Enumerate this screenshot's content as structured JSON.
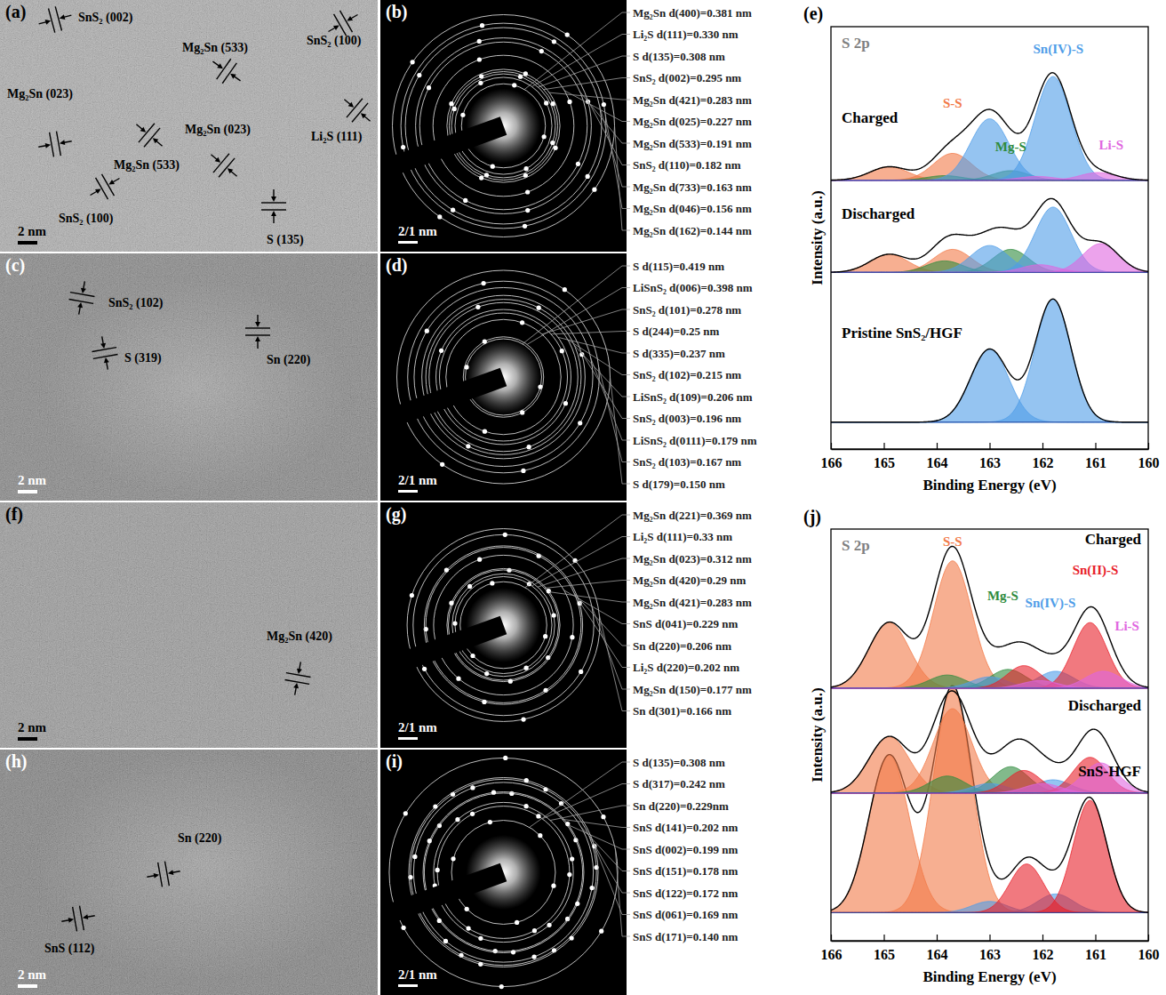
{
  "tem": [
    {
      "label": "(a)",
      "scale_bar": "2 nm",
      "annotations": [
        "SnS₂ (002)",
        "Mg₂Sn (533)",
        "SnS₂ (100)",
        "Li₂S (111)",
        "Mg₂Sn (023)",
        "Mg₂Sn (023)",
        "Mg₂Sn (533)",
        "SnS₂ (100)",
        "S (135)"
      ]
    },
    {
      "label": "(c)",
      "scale_bar": "2 nm",
      "annotations": [
        "SnS₂ (102)",
        "S (319)",
        "Sn (220)"
      ]
    },
    {
      "label": "(f)",
      "scale_bar": "2 nm",
      "annotations": [
        "Mg₂Sn (420)"
      ]
    },
    {
      "label": "(h)",
      "scale_bar": "2 nm",
      "annotations": [
        "Sn (220)",
        "SnS (112)"
      ]
    }
  ],
  "saed": [
    {
      "label": "(b)",
      "scale_bar": "2/1 nm",
      "rings": [
        {
          "label": "Mg₂Sn d(400)=0.381 nm",
          "d": 0.381
        },
        {
          "label": "Li₂S d(111)=0.330 nm",
          "d": 0.33
        },
        {
          "label": "S d(135)=0.308 nm",
          "d": 0.308
        },
        {
          "label": "SnS₂ d(002)=0.295 nm",
          "d": 0.295
        },
        {
          "label": "Mg₂Sn d(421)=0.283 nm",
          "d": 0.283
        },
        {
          "label": "Mg₂Sn d(025)=0.227 nm",
          "d": 0.227
        },
        {
          "label": "Mg₂Sn d(533)=0.191 nm",
          "d": 0.191
        },
        {
          "label": "SnS₂ d(110)=0.182 nm",
          "d": 0.182
        },
        {
          "label": "Mg₂Sn d(733)=0.163 nm",
          "d": 0.163
        },
        {
          "label": "Mg₂Sn d(046)=0.156 nm",
          "d": 0.156
        },
        {
          "label": "Mg₂Sn d(162)=0.144 nm",
          "d": 0.144
        }
      ]
    },
    {
      "label": "(d)",
      "scale_bar": "2/1 nm",
      "rings": [
        {
          "label": "S d(115)=0.419 nm",
          "d": 0.419
        },
        {
          "label": "LiSnS₂ d(006)=0.398 nm",
          "d": 0.398
        },
        {
          "label": "SnS₂ d(101)=0.278 nm",
          "d": 0.278
        },
        {
          "label": "S d(244)=0.25 nm",
          "d": 0.25
        },
        {
          "label": "S d(335)=0.237 nm",
          "d": 0.237
        },
        {
          "label": "SnS₂ d(102)=0.215 nm",
          "d": 0.215
        },
        {
          "label": "LiSnS₂ d(109)=0.206 nm",
          "d": 0.206
        },
        {
          "label": "SnS₂ d(003)=0.196 nm",
          "d": 0.196
        },
        {
          "label": "LiSnS₂ d(0111)=0.179 nm",
          "d": 0.179
        },
        {
          "label": "SnS₂ d(103)=0.167 nm",
          "d": 0.167
        },
        {
          "label": "S d(179)=0.150 nm",
          "d": 0.15
        }
      ]
    },
    {
      "label": "(g)",
      "scale_bar": "2/1 nm",
      "rings": [
        {
          "label": "Mg₂Sn d(221)=0.369 nm",
          "d": 0.369
        },
        {
          "label": "Li₂S d(111)=0.33 nm",
          "d": 0.33
        },
        {
          "label": "Mg₂Sn d(023)=0.312 nm",
          "d": 0.312
        },
        {
          "label": "Mg₂Sn d(420)=0.29 nm",
          "d": 0.29
        },
        {
          "label": "Mg₂Sn d(421)=0.283 nm",
          "d": 0.283
        },
        {
          "label": "SnS d(041)=0.229 nm",
          "d": 0.229
        },
        {
          "label": "Sn d(220)=0.206 nm",
          "d": 0.206
        },
        {
          "label": "Li₂S d(220)=0.202 nm",
          "d": 0.202
        },
        {
          "label": "Mg₂Sn d(150)=0.177 nm",
          "d": 0.177
        },
        {
          "label": "Sn d(301)=0.166 nm",
          "d": 0.166
        }
      ]
    },
    {
      "label": "(i)",
      "scale_bar": "2/1 nm",
      "rings": [
        {
          "label": "S d(135)=0.308 nm",
          "d": 0.308
        },
        {
          "label": "S d(317)=0.242 nm",
          "d": 0.242
        },
        {
          "label": "Sn d(220)=0.229nm",
          "d": 0.229
        },
        {
          "label": "SnS d(141)=0.202 nm",
          "d": 0.202
        },
        {
          "label": "SnS d(002)=0.199 nm",
          "d": 0.199
        },
        {
          "label": "SnS d(151)=0.178 nm",
          "d": 0.178
        },
        {
          "label": "SnS d(122)=0.172 nm",
          "d": 0.172
        },
        {
          "label": "SnS d(061)=0.169 nm",
          "d": 0.169
        },
        {
          "label": "SnS d(171)=0.140 nm",
          "d": 0.14
        }
      ]
    }
  ],
  "chart_data": [
    {
      "type": "area",
      "label": "(e)",
      "title": "S 2p",
      "x_label": "Binding Energy (eV)",
      "y_label": "Intensity (a.u.)",
      "xlim": [
        166,
        160
      ],
      "xticks": [
        166,
        165,
        164,
        163,
        162,
        161,
        160
      ],
      "ylim": [
        0,
        11
      ],
      "tick_labels": "x",
      "components": [
        {
          "name": "S-S",
          "color": "#f27a48"
        },
        {
          "name": "Mg-S",
          "color": "#2e8b3e"
        },
        {
          "name": "Sn(IV)-S",
          "color": "#4f9de8"
        },
        {
          "name": "Li-S",
          "color": "#e066e0"
        }
      ],
      "spectra": [
        {
          "name": "Charged",
          "offset": 7.0,
          "peaks": [
            [
              {
                "center": 164.9,
                "height": 0.35,
                "fwhm": 0.85
              },
              {
                "center": 163.7,
                "height": 0.7,
                "fwhm": 0.85
              }
            ],
            [
              {
                "center": 163.85,
                "height": 0.12,
                "fwhm": 0.8
              },
              {
                "center": 162.6,
                "height": 0.25,
                "fwhm": 0.8
              }
            ],
            [
              {
                "center": 163.0,
                "height": 1.6,
                "fwhm": 0.85
              },
              {
                "center": 161.8,
                "height": 2.7,
                "fwhm": 0.8
              }
            ],
            [
              {
                "center": 162.1,
                "height": 0.1,
                "fwhm": 0.8
              },
              {
                "center": 160.95,
                "height": 0.2,
                "fwhm": 0.8
              }
            ]
          ]
        },
        {
          "name": "Discharged",
          "offset": 4.6,
          "peaks": [
            [
              {
                "center": 164.9,
                "height": 0.47,
                "fwhm": 0.85
              },
              {
                "center": 163.7,
                "height": 0.6,
                "fwhm": 0.85
              }
            ],
            [
              {
                "center": 163.85,
                "height": 0.3,
                "fwhm": 0.8
              },
              {
                "center": 162.6,
                "height": 0.6,
                "fwhm": 0.8
              }
            ],
            [
              {
                "center": 163.0,
                "height": 0.7,
                "fwhm": 0.85
              },
              {
                "center": 161.8,
                "height": 1.7,
                "fwhm": 0.8
              }
            ],
            [
              {
                "center": 162.05,
                "height": 0.2,
                "fwhm": 0.8
              },
              {
                "center": 160.9,
                "height": 0.75,
                "fwhm": 0.8
              }
            ]
          ]
        },
        {
          "name": "Pristine SnS₂/HGF",
          "offset": 0.7,
          "peaks": [
            [],
            [],
            [
              {
                "center": 163.0,
                "height": 1.9,
                "fwhm": 0.85
              },
              {
                "center": 161.8,
                "height": 3.2,
                "fwhm": 0.8
              }
            ],
            []
          ]
        }
      ]
    },
    {
      "type": "area",
      "label": "(j)",
      "title": "S 2p",
      "x_label": "Binding Energy (eV)",
      "y_label": "Intensity (a.u.)",
      "xlim": [
        166,
        160
      ],
      "xticks": [
        166,
        165,
        164,
        163,
        162,
        161,
        160
      ],
      "ylim": [
        0,
        11
      ],
      "tick_labels": "x",
      "components": [
        {
          "name": "S-S",
          "color": "#f27a48"
        },
        {
          "name": "Mg-S",
          "color": "#2e8b3e"
        },
        {
          "name": "Sn(IV)-S",
          "color": "#4f9de8"
        },
        {
          "name": "Sn(II)-S",
          "color": "#e8202a"
        },
        {
          "name": "Li-S",
          "color": "#e066e0"
        }
      ],
      "spectra": [
        {
          "name": "Charged",
          "offset": 6.75,
          "peaks": [
            [
              {
                "center": 164.9,
                "height": 1.75,
                "fwhm": 0.9
              },
              {
                "center": 163.7,
                "height": 3.4,
                "fwhm": 0.85
              }
            ],
            [
              {
                "center": 163.8,
                "height": 0.35,
                "fwhm": 0.8
              },
              {
                "center": 162.65,
                "height": 0.5,
                "fwhm": 0.8
              }
            ],
            [
              {
                "center": 163.0,
                "height": 0.3,
                "fwhm": 0.8
              },
              {
                "center": 161.75,
                "height": 0.45,
                "fwhm": 0.8
              }
            ],
            [
              {
                "center": 162.35,
                "height": 0.6,
                "fwhm": 0.75
              },
              {
                "center": 161.1,
                "height": 1.75,
                "fwhm": 0.75
              }
            ],
            [
              {
                "center": 162.05,
                "height": 0.2,
                "fwhm": 0.8
              },
              {
                "center": 160.85,
                "height": 0.45,
                "fwhm": 0.8
              }
            ]
          ]
        },
        {
          "name": "Discharged",
          "offset": 3.95,
          "peaks": [
            [
              {
                "center": 164.9,
                "height": 1.5,
                "fwhm": 0.9
              },
              {
                "center": 163.7,
                "height": 2.25,
                "fwhm": 0.85
              }
            ],
            [
              {
                "center": 163.8,
                "height": 0.45,
                "fwhm": 0.8
              },
              {
                "center": 162.6,
                "height": 0.7,
                "fwhm": 0.8
              }
            ],
            [
              {
                "center": 163.0,
                "height": 0.25,
                "fwhm": 0.8
              },
              {
                "center": 161.8,
                "height": 0.35,
                "fwhm": 0.8
              }
            ],
            [
              {
                "center": 162.35,
                "height": 0.6,
                "fwhm": 0.75
              },
              {
                "center": 161.1,
                "height": 0.95,
                "fwhm": 0.75
              }
            ],
            [
              {
                "center": 162.0,
                "height": 0.25,
                "fwhm": 0.8
              },
              {
                "center": 160.9,
                "height": 0.8,
                "fwhm": 0.8
              }
            ]
          ]
        },
        {
          "name": "SnS-HGF",
          "offset": 0.75,
          "peaks": [
            [
              {
                "center": 164.9,
                "height": 4.2,
                "fwhm": 0.9
              },
              {
                "center": 163.7,
                "height": 6.0,
                "fwhm": 0.85
              }
            ],
            [],
            [
              {
                "center": 163.0,
                "height": 0.3,
                "fwhm": 0.8
              },
              {
                "center": 161.75,
                "height": 0.5,
                "fwhm": 0.8
              }
            ],
            [
              {
                "center": 162.3,
                "height": 1.3,
                "fwhm": 0.75
              },
              {
                "center": 161.1,
                "height": 3.0,
                "fwhm": 0.75
              }
            ],
            []
          ]
        }
      ]
    }
  ]
}
